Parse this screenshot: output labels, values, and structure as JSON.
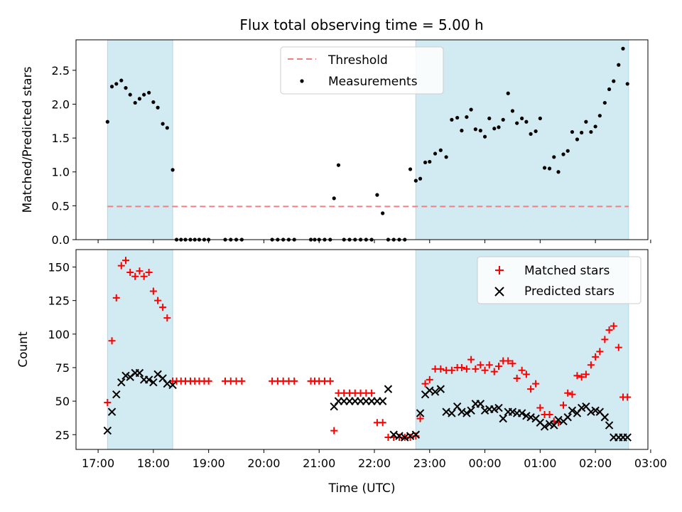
{
  "title": "Flux total observing time = 5.00 h",
  "xlabel": "Time (UTC)",
  "x_ticks": [
    "17:00",
    "18:00",
    "19:00",
    "20:00",
    "21:00",
    "22:00",
    "23:00",
    "00:00",
    "01:00",
    "02:00",
    "03:00"
  ],
  "colors": {
    "shade": "#add8e6",
    "threshold": "#f08080",
    "measurement": "#000000",
    "matched": "#ff0000",
    "predicted": "#000000"
  },
  "chart_data": [
    {
      "type": "scatter",
      "panel": "top",
      "ylabel": "Matched/Predicted stars",
      "ylim": [
        0,
        2.95
      ],
      "yticks": [
        0.0,
        0.5,
        1.0,
        1.5,
        2.0,
        2.5
      ],
      "ytick_labels": [
        "0.0",
        "0.5",
        "1.0",
        "1.5",
        "2.0",
        "2.5"
      ],
      "x_units": "hours since 17:00 UTC",
      "shaded_ranges": [
        [
          0.17,
          1.35
        ],
        [
          5.75,
          9.6
        ]
      ],
      "threshold": 0.49,
      "legend": {
        "position": "top-center",
        "entries": [
          "Threshold",
          "Measurements"
        ]
      },
      "series": [
        {
          "name": "Measurements",
          "x": [
            0.17,
            0.25,
            0.33,
            0.42,
            0.5,
            0.58,
            0.67,
            0.75,
            0.83,
            0.92,
            1.0,
            1.08,
            1.17,
            1.25,
            1.35,
            1.42,
            1.5,
            1.58,
            1.67,
            1.75,
            1.83,
            1.92,
            2.0,
            2.3,
            2.4,
            2.5,
            2.6,
            3.15,
            3.25,
            3.35,
            3.45,
            3.55,
            3.85,
            3.92,
            4.0,
            4.1,
            4.2,
            4.27,
            4.35,
            4.45,
            4.55,
            4.65,
            4.75,
            4.85,
            4.95,
            5.05,
            5.15,
            5.25,
            5.35,
            5.45,
            5.55,
            5.65,
            5.75,
            5.83,
            5.92,
            6.0,
            6.1,
            6.2,
            6.3,
            6.4,
            6.5,
            6.58,
            6.67,
            6.75,
            6.83,
            6.92,
            7.0,
            7.08,
            7.17,
            7.25,
            7.33,
            7.42,
            7.5,
            7.58,
            7.67,
            7.75,
            7.83,
            7.92,
            8.0,
            8.08,
            8.17,
            8.25,
            8.33,
            8.42,
            8.5,
            8.58,
            8.67,
            8.75,
            8.83,
            8.92,
            9.0,
            9.08,
            9.17,
            9.25,
            9.33,
            9.42,
            9.5,
            9.58
          ],
          "y": [
            1.74,
            2.26,
            2.3,
            2.35,
            2.24,
            2.14,
            2.02,
            2.08,
            2.14,
            2.17,
            2.03,
            1.95,
            1.71,
            1.65,
            1.03,
            0,
            0,
            0,
            0,
            0,
            0,
            0,
            0,
            0,
            0,
            0,
            0,
            0,
            0,
            0,
            0,
            0,
            0,
            0,
            0,
            0,
            0,
            0.61,
            1.1,
            0,
            0,
            0,
            0,
            0,
            0,
            0.66,
            0.39,
            0,
            0,
            0,
            0,
            1.04,
            0.87,
            0.9,
            1.14,
            1.15,
            1.27,
            1.32,
            1.22,
            1.77,
            1.8,
            1.61,
            1.81,
            1.92,
            1.63,
            1.61,
            1.52,
            1.79,
            1.64,
            1.66,
            1.77,
            2.16,
            1.9,
            1.72,
            1.79,
            1.74,
            1.56,
            1.6,
            1.79,
            1.06,
            1.05,
            1.22,
            1.0,
            1.26,
            1.31,
            1.59,
            1.48,
            1.58,
            1.74,
            1.59,
            1.67,
            1.83,
            2.02,
            2.22,
            2.34,
            2.58,
            2.82,
            2.3
          ]
        }
      ]
    },
    {
      "type": "scatter",
      "panel": "bottom",
      "ylabel": "Count",
      "ylim": [
        14,
        163
      ],
      "yticks": [
        25,
        50,
        75,
        100,
        125,
        150
      ],
      "ytick_labels": [
        "25",
        "50",
        "75",
        "100",
        "125",
        "150"
      ],
      "x_units": "hours since 17:00 UTC",
      "shaded_ranges": [
        [
          0.17,
          1.35
        ],
        [
          5.75,
          9.6
        ]
      ],
      "legend": {
        "position": "top-right",
        "entries": [
          "Matched stars",
          "Predicted stars"
        ]
      },
      "series": [
        {
          "name": "Matched stars",
          "x": [
            0.17,
            0.25,
            0.33,
            0.42,
            0.5,
            0.58,
            0.67,
            0.75,
            0.83,
            0.92,
            1.0,
            1.08,
            1.17,
            1.25,
            1.35,
            1.42,
            1.5,
            1.58,
            1.67,
            1.75,
            1.83,
            1.92,
            2.0,
            2.3,
            2.4,
            2.5,
            2.6,
            3.15,
            3.25,
            3.35,
            3.45,
            3.55,
            3.85,
            3.92,
            4.0,
            4.1,
            4.2,
            4.27,
            4.35,
            4.45,
            4.55,
            4.65,
            4.75,
            4.85,
            4.95,
            5.05,
            5.15,
            5.25,
            5.35,
            5.45,
            5.55,
            5.65,
            5.75,
            5.83,
            5.92,
            6.0,
            6.1,
            6.2,
            6.3,
            6.4,
            6.5,
            6.58,
            6.67,
            6.75,
            6.83,
            6.92,
            7.0,
            7.08,
            7.17,
            7.25,
            7.33,
            7.42,
            7.5,
            7.58,
            7.67,
            7.75,
            7.83,
            7.92,
            8.0,
            8.08,
            8.17,
            8.25,
            8.33,
            8.42,
            8.5,
            8.58,
            8.67,
            8.75,
            8.83,
            8.92,
            9.0,
            9.08,
            9.17,
            9.25,
            9.33,
            9.42,
            9.5,
            9.58
          ],
          "y": [
            49,
            95,
            127,
            151,
            155,
            146,
            143,
            147,
            143,
            146,
            132,
            125,
            120,
            112,
            65,
            65,
            65,
            65,
            65,
            65,
            65,
            65,
            65,
            65,
            65,
            65,
            65,
            65,
            65,
            65,
            65,
            65,
            65,
            65,
            65,
            65,
            65,
            28,
            56,
            56,
            56,
            56,
            56,
            56,
            56,
            34,
            34,
            23,
            23,
            23,
            23,
            23,
            24,
            37,
            63,
            66,
            74,
            74,
            73,
            73,
            75,
            75,
            74,
            81,
            74,
            77,
            73,
            77,
            72,
            76,
            80,
            80,
            78,
            67,
            73,
            70,
            59,
            63,
            45,
            40,
            40,
            35,
            34,
            47,
            56,
            55,
            69,
            68,
            70,
            77,
            83,
            87,
            96,
            103,
            106,
            90,
            53,
            53
          ]
        },
        {
          "name": "Predicted stars",
          "x": [
            0.17,
            0.25,
            0.33,
            0.42,
            0.5,
            0.58,
            0.67,
            0.75,
            0.83,
            0.92,
            1.0,
            1.08,
            1.17,
            1.25,
            1.35,
            4.27,
            4.35,
            4.45,
            4.55,
            4.65,
            4.75,
            4.85,
            4.95,
            5.05,
            5.15,
            5.25,
            5.35,
            5.45,
            5.55,
            5.65,
            5.75,
            5.83,
            5.92,
            6.0,
            6.1,
            6.2,
            6.3,
            6.4,
            6.5,
            6.58,
            6.67,
            6.75,
            6.83,
            6.92,
            7.0,
            7.08,
            7.17,
            7.25,
            7.33,
            7.42,
            7.5,
            7.58,
            7.67,
            7.75,
            7.83,
            7.92,
            8.0,
            8.08,
            8.17,
            8.25,
            8.33,
            8.42,
            8.5,
            8.58,
            8.67,
            8.75,
            8.83,
            8.92,
            9.0,
            9.08,
            9.17,
            9.25,
            9.33,
            9.42,
            9.5,
            9.58
          ],
          "y": [
            28,
            42,
            55,
            64,
            69,
            68,
            71,
            71,
            66,
            66,
            64,
            70,
            67,
            63,
            62,
            46,
            50,
            50,
            50,
            50,
            50,
            50,
            50,
            50,
            50,
            59,
            25,
            24,
            23,
            24,
            25,
            41,
            55,
            58,
            57,
            59,
            42,
            41,
            46,
            42,
            41,
            43,
            48,
            48,
            43,
            44,
            44,
            45,
            37,
            42,
            42,
            41,
            41,
            39,
            38,
            37,
            34,
            31,
            33,
            32,
            36,
            35,
            38,
            43,
            41,
            45,
            46,
            42,
            43,
            42,
            38,
            32,
            23,
            23,
            23,
            23
          ]
        }
      ]
    }
  ]
}
